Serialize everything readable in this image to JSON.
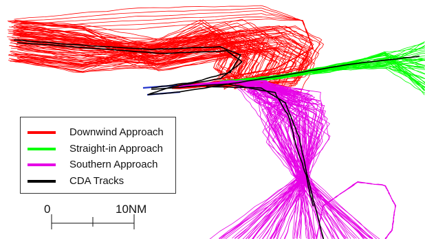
{
  "legend": {
    "items": [
      {
        "label": "Downwind Approach",
        "color": "#ff0000"
      },
      {
        "label": "Straight-in Approach",
        "color": "#00ff00"
      },
      {
        "label": "Southern Approach",
        "color": "#e600e6"
      },
      {
        "label": "CDA Tracks",
        "color": "#000000"
      }
    ]
  },
  "scale_bar": {
    "start_label": "0",
    "end_label": "10NM"
  },
  "colors": {
    "downwind": "#ff0000",
    "straight_in": "#00ff00",
    "southern": "#e600e6",
    "cda": "#000000",
    "runway": "#2233cc"
  }
}
